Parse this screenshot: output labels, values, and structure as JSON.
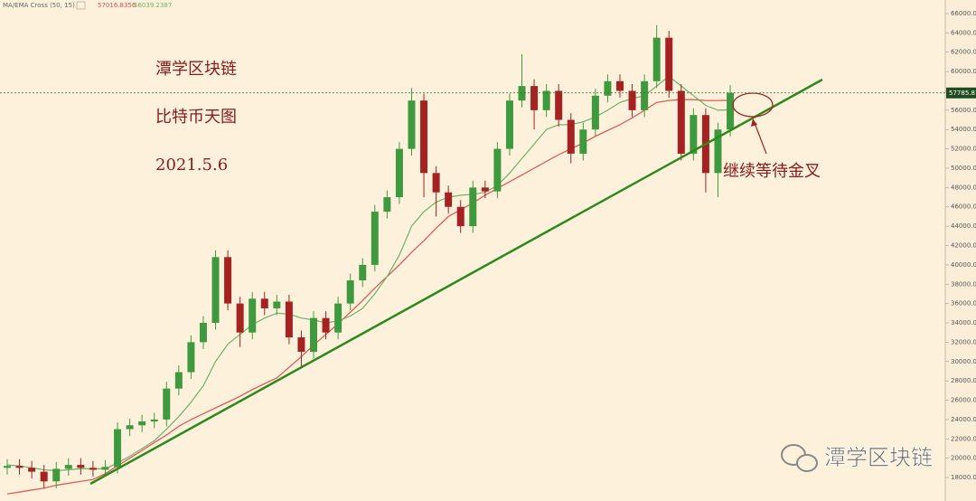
{
  "chart_data": {
    "type": "candlestick",
    "indicator": "MA/EMA Cross (50, 15)",
    "up_color": "#3f9a3f",
    "down_color": "#a52222",
    "open": [
      19000,
      19200,
      19000,
      18600,
      17600,
      18900,
      19300,
      19000,
      18800,
      19100,
      23000,
      23400,
      23800,
      24000,
      27200,
      28900,
      32000,
      34000,
      40800,
      36000,
      33000,
      36500,
      35500,
      36200,
      32500,
      31000,
      34500,
      33000,
      36000,
      38400,
      40000,
      45500,
      47000,
      52000,
      57000,
      49500,
      47500,
      46000,
      44000,
      48000,
      47600,
      52000,
      57000,
      58500,
      56000,
      58000,
      55000,
      51500,
      54000,
      57500,
      59000,
      58000,
      56000,
      59000,
      63500,
      58000,
      51500,
      55500,
      49500,
      54000
    ],
    "high": [
      19900,
      19900,
      19700,
      19300,
      19600,
      20000,
      20000,
      19700,
      19800,
      23700,
      24100,
      24500,
      24700,
      27900,
      29600,
      32700,
      34700,
      41500,
      41500,
      36700,
      37200,
      37200,
      36900,
      36900,
      33200,
      35200,
      35200,
      36700,
      39100,
      40700,
      46200,
      47700,
      52700,
      58300,
      57700,
      50200,
      48200,
      46700,
      48700,
      48700,
      52700,
      57700,
      61800,
      59200,
      58700,
      58700,
      55700,
      54700,
      58200,
      59700,
      59700,
      58700,
      59700,
      64800,
      64200,
      58700,
      56200,
      56200,
      54700,
      58600
    ],
    "low": [
      18300,
      18300,
      17900,
      16900,
      16900,
      18200,
      18300,
      18100,
      18100,
      18400,
      22300,
      22700,
      23100,
      23300,
      26500,
      28200,
      31300,
      33300,
      35300,
      31500,
      32300,
      34800,
      34800,
      31800,
      29500,
      30300,
      32300,
      32300,
      35300,
      37700,
      39300,
      44800,
      46300,
      51300,
      47000,
      45000,
      45300,
      43300,
      43300,
      46900,
      46900,
      51300,
      56300,
      54000,
      55300,
      54300,
      50500,
      50800,
      53300,
      56800,
      57300,
      55300,
      55300,
      58300,
      57300,
      50800,
      50800,
      47500,
      47000,
      53300
    ],
    "close": [
      19200,
      19000,
      18600,
      17600,
      18900,
      19300,
      19000,
      18800,
      19100,
      23000,
      23400,
      23800,
      24000,
      27200,
      28900,
      32000,
      34000,
      40800,
      36000,
      33000,
      36500,
      35500,
      36200,
      32500,
      31000,
      34500,
      33000,
      36000,
      38400,
      40000,
      45500,
      47000,
      52000,
      57000,
      49500,
      47500,
      46000,
      44000,
      48000,
      47600,
      52000,
      57000,
      58500,
      56000,
      58000,
      55000,
      51500,
      54000,
      57500,
      59000,
      58000,
      56000,
      59000,
      63500,
      58000,
      51500,
      55500,
      49500,
      54000,
      57800
    ],
    "series": [
      {
        "color": "#e0504a",
        "values": [
          16300,
          16500,
          16700,
          16900,
          17200,
          17400,
          17600,
          17800,
          18400,
          19200,
          20000,
          20800,
          21600,
          22400,
          23300,
          24000,
          24600,
          25200,
          25800,
          26400,
          27100,
          27700,
          28300,
          29400,
          30500,
          31700,
          32800,
          33900,
          35100,
          36300,
          37600,
          38800,
          40000,
          41300,
          42500,
          43800,
          45000,
          45700,
          46400,
          47200,
          47900,
          48600,
          49300,
          50000,
          50700,
          51400,
          52000,
          52600,
          53300,
          53900,
          54500,
          55200,
          56000,
          56800,
          57000,
          57100,
          57100,
          57000,
          57000,
          57016.8356
        ]
      },
      {
        "color": "#6bb36b",
        "values": [
          19300,
          19200,
          19000,
          18800,
          18700,
          18800,
          18900,
          18900,
          18900,
          19500,
          20200,
          21000,
          21800,
          23000,
          24300,
          25800,
          27500,
          30000,
          31800,
          32800,
          33800,
          34500,
          35000,
          34900,
          34500,
          34300,
          34000,
          34200,
          34700,
          35500,
          37000,
          38800,
          41000,
          44000,
          45500,
          46500,
          47000,
          47200,
          47300,
          47500,
          48200,
          49500,
          51000,
          52500,
          54000,
          54500,
          54500,
          54800,
          55300,
          56000,
          56800,
          57200,
          57500,
          58500,
          59500,
          58500,
          57500,
          56500,
          56000,
          56039.2387
        ]
      }
    ],
    "last_price": 57785.81,
    "ylim": [
      15570,
      67400
    ],
    "yticks": [
      {
        "value": 18000,
        "label": "18000.00"
      },
      {
        "value": 20000,
        "label": "20000.00"
      },
      {
        "value": 22000,
        "label": "22000.00"
      },
      {
        "value": 24000,
        "label": "24000.00"
      },
      {
        "value": 26000,
        "label": "26000.00"
      },
      {
        "value": 28000,
        "label": "28000.00"
      },
      {
        "value": 30000,
        "label": "30000.00"
      },
      {
        "value": 32000,
        "label": "32000.00"
      },
      {
        "value": 34000,
        "label": "34000.00"
      },
      {
        "value": 36000,
        "label": "36000.00"
      },
      {
        "value": 38000,
        "label": "38000.00"
      },
      {
        "value": 40000,
        "label": "40000.00"
      },
      {
        "value": 42000,
        "label": "42000.00"
      },
      {
        "value": 44000,
        "label": "44000.00"
      },
      {
        "value": 46000,
        "label": "46000.00"
      },
      {
        "value": 48000,
        "label": "48000.00"
      },
      {
        "value": 50000,
        "label": "50000.00"
      },
      {
        "value": 52000,
        "label": "52000.00"
      },
      {
        "value": 54000,
        "label": "54000.00"
      },
      {
        "value": 56000,
        "label": "56000.00"
      },
      {
        "value": 58000,
        "label": "58000.00"
      },
      {
        "value": 60000,
        "label": "60000.00"
      },
      {
        "value": 62000,
        "label": "62000.00"
      },
      {
        "value": 64000,
        "label": "64000.00"
      },
      {
        "value": 66000,
        "label": "66000.00"
      }
    ],
    "annotations": [
      "潭学区块链",
      "比特币天图",
      "2021.5.6",
      "继续等待金叉"
    ],
    "watermark": "潭学区块链"
  }
}
